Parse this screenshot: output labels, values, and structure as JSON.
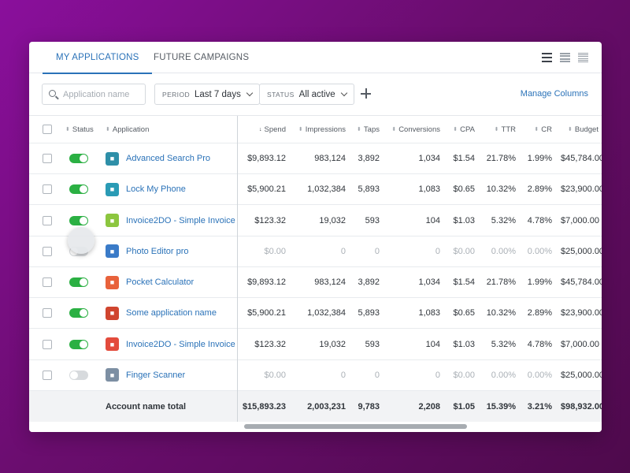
{
  "tabs": [
    {
      "label": "MY APPLICATIONS",
      "active": true
    },
    {
      "label": "FUTURE CAMPAIGNS",
      "active": false
    }
  ],
  "view_icons": [
    "list-compact-icon",
    "list-medium-icon",
    "list-dense-icon"
  ],
  "filters": {
    "search_placeholder": "Application name",
    "period_label": "PERIOD",
    "period_value": "Last 7 days",
    "status_label": "STATUS",
    "status_value": "All active",
    "manage_columns": "Manage Columns"
  },
  "columns": {
    "status": "Status",
    "application": "Application",
    "spend": "Spend",
    "impressions": "Impressions",
    "taps": "Taps",
    "conversions": "Conversions",
    "cpa": "CPA",
    "ttr": "TTR",
    "cr": "CR",
    "budget": "Budget"
  },
  "rows": [
    {
      "active": true,
      "icon_color": "#2e8fa8",
      "name": "Advanced Search Pro",
      "spend": "$9,893.12",
      "impressions": "983,124",
      "taps": "3,892",
      "conversions": "1,034",
      "cpa": "$1.54",
      "ttr": "21.78%",
      "cr": "1.99%",
      "budget": "$45,784.00"
    },
    {
      "active": true,
      "icon_color": "#2a9bb5",
      "name": "Lock My Phone",
      "spend": "$5,900.21",
      "impressions": "1,032,384",
      "taps": "5,893",
      "conversions": "1,083",
      "cpa": "$0.65",
      "ttr": "10.32%",
      "cr": "2.89%",
      "budget": "$23,900.00"
    },
    {
      "active": true,
      "icon_color": "#8cc63f",
      "name": "Invoice2DO - Simple Invoice",
      "spend": "$123.32",
      "impressions": "19,032",
      "taps": "593",
      "conversions": "104",
      "cpa": "$1.03",
      "ttr": "5.32%",
      "cr": "4.78%",
      "budget": "$7,000.00"
    },
    {
      "active": false,
      "icon_color": "#3a7bc8",
      "name": "Photo Editor pro",
      "spend": "$0.00",
      "impressions": "0",
      "taps": "0",
      "conversions": "0",
      "cpa": "$0.00",
      "ttr": "0.00%",
      "cr": "0.00%",
      "budget": "$25,000.00"
    },
    {
      "active": true,
      "icon_color": "#e8623b",
      "name": "Pocket Calculator",
      "spend": "$9,893.12",
      "impressions": "983,124",
      "taps": "3,892",
      "conversions": "1,034",
      "cpa": "$1.54",
      "ttr": "21.78%",
      "cr": "1.99%",
      "budget": "$45,784.00"
    },
    {
      "active": true,
      "icon_color": "#d0452f",
      "name": "Some application name",
      "spend": "$5,900.21",
      "impressions": "1,032,384",
      "taps": "5,893",
      "conversions": "1,083",
      "cpa": "$0.65",
      "ttr": "10.32%",
      "cr": "2.89%",
      "budget": "$23,900.00"
    },
    {
      "active": true,
      "icon_color": "#e34b3c",
      "name": "Invoice2DO - Simple Invoice",
      "spend": "$123.32",
      "impressions": "19,032",
      "taps": "593",
      "conversions": "104",
      "cpa": "$1.03",
      "ttr": "5.32%",
      "cr": "4.78%",
      "budget": "$7,000.00"
    },
    {
      "active": false,
      "icon_color": "#7d8fa3",
      "name": "Finger Scanner",
      "spend": "$0.00",
      "impressions": "0",
      "taps": "0",
      "conversions": "0",
      "cpa": "$0.00",
      "ttr": "0.00%",
      "cr": "0.00%",
      "budget": "$25,000.00"
    }
  ],
  "total": {
    "label": "Account name total",
    "spend": "$15,893.23",
    "impressions": "2,003,231",
    "taps": "9,783",
    "conversions": "2,208",
    "cpa": "$1.05",
    "ttr": "15.39%",
    "cr": "3.21%",
    "budget": "$98,932.00"
  },
  "colors": {
    "accent": "#2a72b8",
    "toggle_on": "#2bb043",
    "toggle_off": "#d7dadd"
  }
}
